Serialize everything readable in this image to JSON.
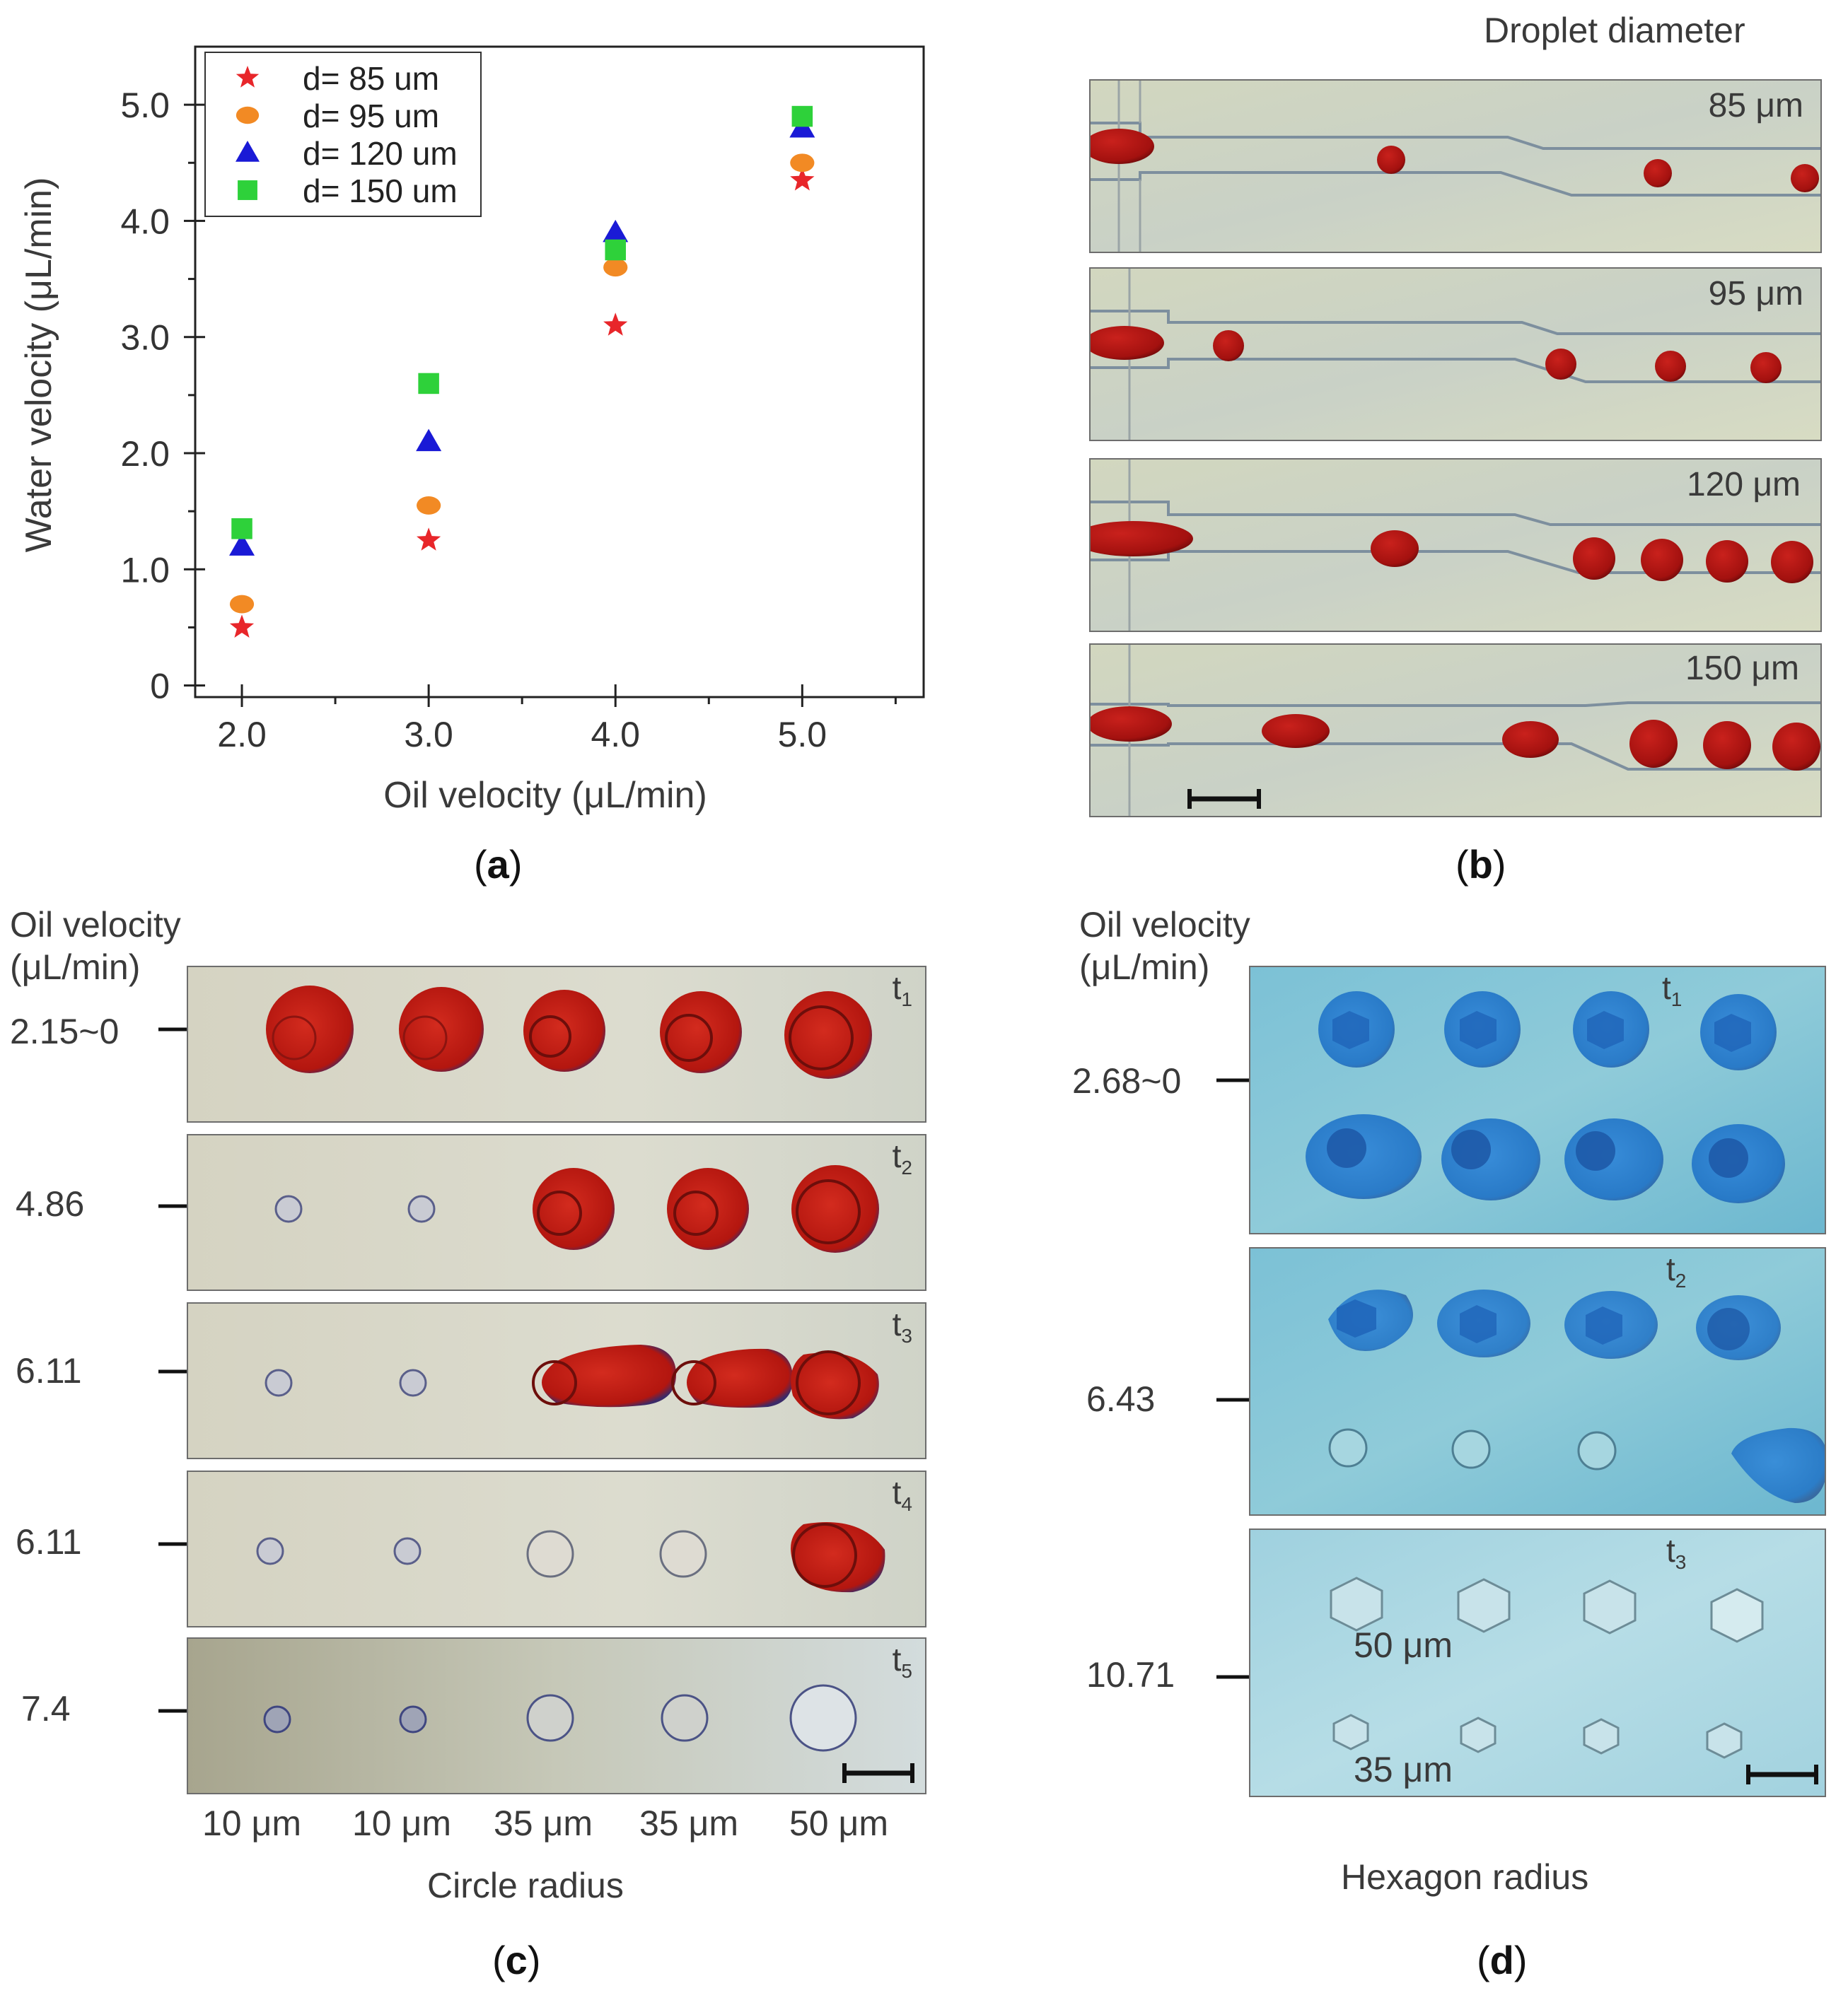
{
  "panel_labels": {
    "a": "a",
    "b": "b",
    "c": "c",
    "d": "d"
  },
  "chart_data": {
    "type": "scatter",
    "xlabel": "Oil velocity (μL/min)",
    "ylabel": "Water velocity (μL/min)",
    "xlim": [
      1.75,
      5.65
    ],
    "ylim": [
      -0.1,
      5.5
    ],
    "x_ticks": [
      "2.0",
      "3.0",
      "4.0",
      "5.0"
    ],
    "y_ticks": [
      "0",
      "1.0",
      "2.0",
      "3.0",
      "4.0",
      "5.0"
    ],
    "legend_position": "top-left",
    "series": [
      {
        "name": "d= 85 um",
        "marker": "star",
        "color": "#e8262a",
        "x": [
          2.0,
          3.0,
          4.0,
          5.0
        ],
        "y": [
          0.5,
          1.25,
          3.1,
          4.35
        ]
      },
      {
        "name": "d= 95 um",
        "marker": "circle",
        "color": "#f28a24",
        "x": [
          2.0,
          3.0,
          4.0,
          5.0
        ],
        "y": [
          0.7,
          1.55,
          3.6,
          4.5
        ]
      },
      {
        "name": "d= 120 um",
        "marker": "triangle",
        "color": "#1a1ad6",
        "x": [
          2.0,
          3.0,
          4.0,
          5.0
        ],
        "y": [
          1.2,
          2.1,
          3.9,
          4.8
        ]
      },
      {
        "name": "d= 150 um",
        "marker": "square",
        "color": "#2ed13a",
        "x": [
          2.0,
          3.0,
          4.0,
          5.0
        ],
        "y": [
          1.35,
          2.6,
          3.75,
          4.9
        ]
      }
    ]
  },
  "panel_b": {
    "header": "Droplet diameter",
    "rows": [
      {
        "label": "85 μm"
      },
      {
        "label": "95 μm"
      },
      {
        "label": "120 μm"
      },
      {
        "label": "150 μm"
      }
    ]
  },
  "panel_c": {
    "header_line1": "Oil velocity",
    "header_line2": "(μL/min)",
    "rows": [
      {
        "velocity": "2.15~0",
        "time": "t",
        "sub": "1"
      },
      {
        "velocity": "4.86",
        "time": "t",
        "sub": "2"
      },
      {
        "velocity": "6.11",
        "time": "t",
        "sub": "3"
      },
      {
        "velocity": "6.11",
        "time": "t",
        "sub": "4"
      },
      {
        "velocity": "7.4",
        "time": "t",
        "sub": "5"
      }
    ],
    "columns": [
      "10 μm",
      "10 μm",
      "35 μm",
      "35 μm",
      "50 μm"
    ],
    "axis_title": "Circle radius"
  },
  "panel_d": {
    "header_line1": "Oil velocity",
    "header_line2": "(μL/min)",
    "rows": [
      {
        "velocity": "2.68~0",
        "time": "t",
        "sub": "1"
      },
      {
        "velocity": "6.43",
        "time": "t",
        "sub": "2"
      },
      {
        "velocity": "10.71",
        "time": "t",
        "sub": "3"
      }
    ],
    "inner_label_top": "50 μm",
    "inner_label_bottom": "35 μm",
    "axis_title": "Hexagon radius"
  }
}
